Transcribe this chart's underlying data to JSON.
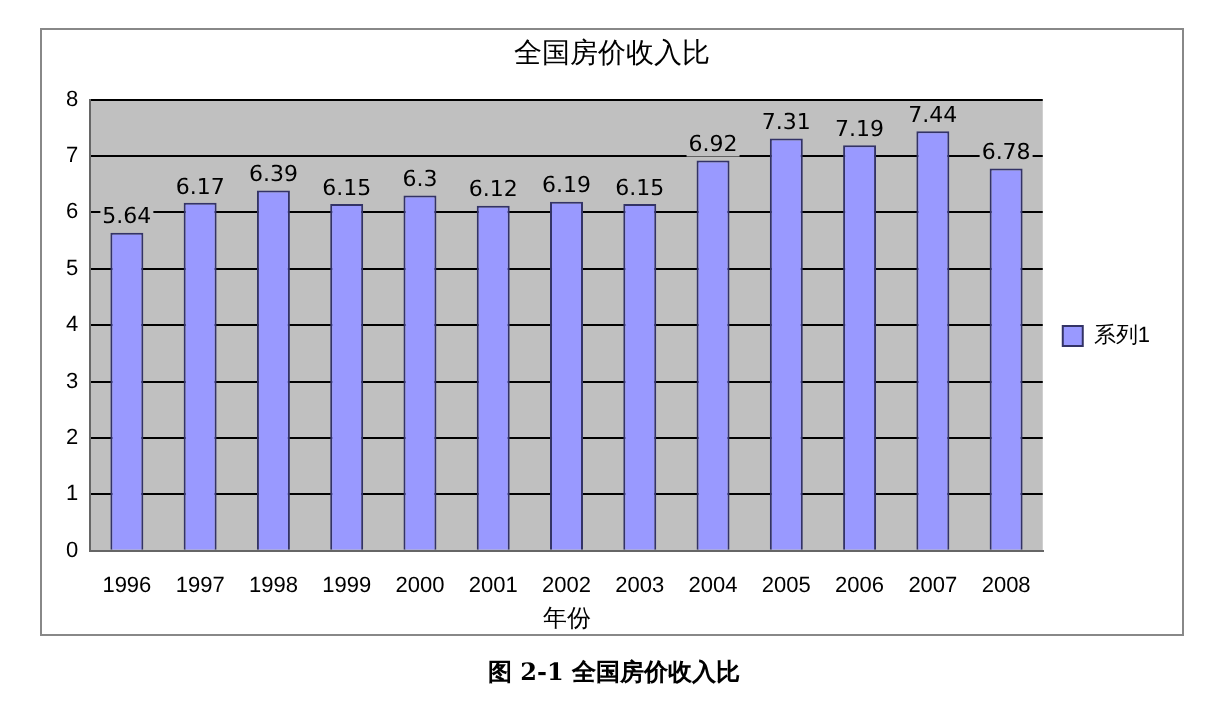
{
  "chart_data": {
    "type": "bar",
    "title": "全国房价收入比",
    "xlabel": "年份",
    "categories": [
      "1996",
      "1997",
      "1998",
      "1999",
      "2000",
      "2001",
      "2002",
      "2003",
      "2004",
      "2005",
      "2006",
      "2007",
      "2008"
    ],
    "series": [
      {
        "name": "系列1",
        "color": "#9999ff",
        "values": [
          5.64,
          6.17,
          6.39,
          6.15,
          6.3,
          6.12,
          6.19,
          6.15,
          6.92,
          7.31,
          7.19,
          7.44,
          6.78
        ]
      }
    ],
    "ylim": [
      0,
      8
    ],
    "yticks": [
      0,
      1,
      2,
      3,
      4,
      5,
      6,
      7,
      8
    ],
    "grid": "y",
    "legend": "right",
    "data_labels": true,
    "annotations": [
      "图 2-1 全国房价收入比"
    ]
  }
}
